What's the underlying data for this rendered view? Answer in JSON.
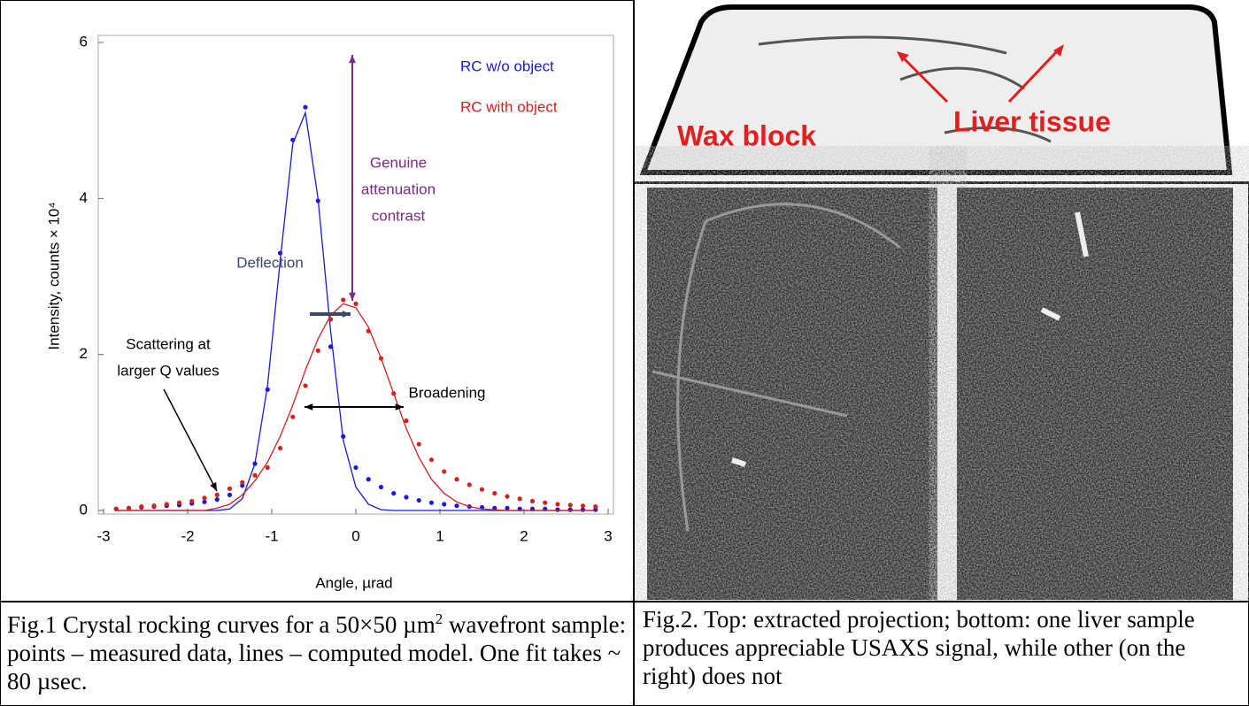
{
  "chart_data": {
    "type": "scatter",
    "xlabel": "Angle, µrad",
    "ylabel": "Intensity, counts × 10⁴",
    "xlim": [
      -3,
      3
    ],
    "ylim": [
      0,
      6
    ],
    "xticks": [
      -3,
      -2,
      -1,
      0,
      1,
      2,
      3
    ],
    "yticks": [
      0,
      2,
      4,
      6
    ],
    "x": [
      -2.85,
      -2.7,
      -2.55,
      -2.4,
      -2.25,
      -2.1,
      -1.95,
      -1.8,
      -1.65,
      -1.5,
      -1.35,
      -1.2,
      -1.05,
      -0.9,
      -0.75,
      -0.6,
      -0.45,
      -0.3,
      -0.15,
      0,
      0.15,
      0.3,
      0.45,
      0.6,
      0.75,
      0.9,
      1.05,
      1.2,
      1.35,
      1.5,
      1.65,
      1.8,
      1.95,
      2.1,
      2.25,
      2.4,
      2.55,
      2.7,
      2.85
    ],
    "series": [
      {
        "name": "RC w/o object",
        "color": "#1a1adb",
        "values": [
          0.02,
          0.03,
          0.04,
          0.05,
          0.06,
          0.07,
          0.09,
          0.11,
          0.14,
          0.2,
          0.32,
          0.6,
          1.55,
          3.3,
          4.75,
          5.17,
          3.97,
          2.1,
          0.95,
          0.55,
          0.4,
          0.3,
          0.22,
          0.17,
          0.13,
          0.1,
          0.08,
          0.06,
          0.05,
          0.04,
          0.03,
          0.03,
          0.02,
          0.02,
          0.02,
          0.01,
          0.01,
          0.01,
          0.01
        ],
        "model_values": [
          0,
          0,
          0,
          0,
          0,
          0,
          0,
          0,
          0,
          0.02,
          0.15,
          0.6,
          1.6,
          3.2,
          4.7,
          5.1,
          4.0,
          2.3,
          0.9,
          0.3,
          0.08,
          0.01,
          0,
          0,
          0,
          0,
          0,
          0,
          0,
          0,
          0,
          0,
          0,
          0,
          0,
          0,
          0,
          0,
          0
        ]
      },
      {
        "name": "RC with object",
        "color": "#d42020",
        "values": [
          0.02,
          0.03,
          0.05,
          0.06,
          0.08,
          0.1,
          0.12,
          0.16,
          0.2,
          0.28,
          0.36,
          0.45,
          0.55,
          0.8,
          1.2,
          1.6,
          2.05,
          2.45,
          2.7,
          2.65,
          2.3,
          1.95,
          1.5,
          1.15,
          0.85,
          0.65,
          0.5,
          0.4,
          0.33,
          0.27,
          0.22,
          0.18,
          0.15,
          0.12,
          0.1,
          0.08,
          0.07,
          0.06,
          0.05
        ],
        "model_values": [
          0,
          0,
          0,
          0,
          0,
          0,
          0,
          0,
          0.03,
          0.08,
          0.2,
          0.38,
          0.62,
          0.95,
          1.35,
          1.8,
          2.2,
          2.5,
          2.65,
          2.6,
          2.35,
          1.95,
          1.5,
          1.05,
          0.68,
          0.4,
          0.22,
          0.11,
          0.05,
          0.02,
          0.01,
          0,
          0,
          0,
          0,
          0,
          0,
          0,
          0
        ]
      }
    ],
    "annotations": [
      {
        "lines": [
          "Genuine",
          "attenuation",
          "contrast"
        ]
      },
      {
        "lines": [
          "Deflection"
        ]
      },
      {
        "lines": [
          "Scattering at",
          "larger Q values"
        ]
      },
      {
        "lines": [
          "Broadening"
        ]
      }
    ]
  },
  "figure2": {
    "labels": [
      "Wax block",
      "Liver tissue"
    ]
  },
  "captions": [
    {
      "before": "Fig.1 Crystal rocking curves for a 50×50 µm",
      "superscript": "2",
      "after": " wavefront sample: points – measured data, lines – computed model. One fit takes ~ 80 µsec."
    },
    {
      "before": "Fig.2. Top: extracted projection; bottom: one liver sample produces appreciable USAXS signal, while other (on the right) does not",
      "superscript": "",
      "after": ""
    }
  ]
}
